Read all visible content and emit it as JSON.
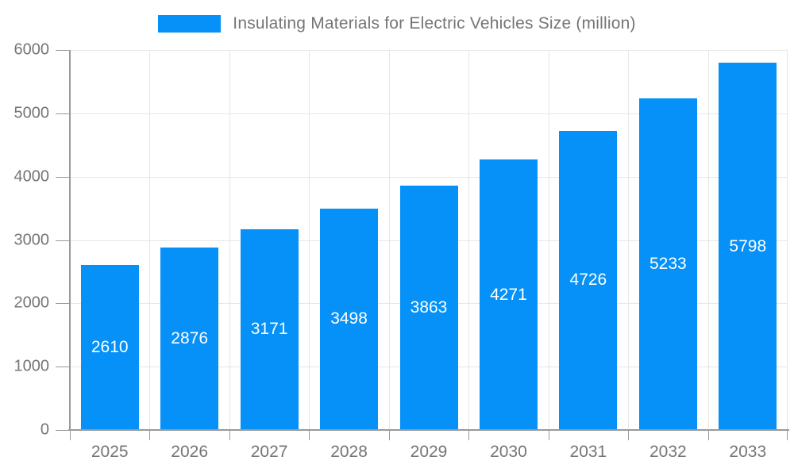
{
  "chart_data": {
    "type": "bar",
    "title": "Insulating Materials for Electric Vehicles Size (million)",
    "categories": [
      "2025",
      "2026",
      "2027",
      "2028",
      "2029",
      "2030",
      "2031",
      "2032",
      "2033"
    ],
    "values": [
      2610,
      2876,
      3171,
      3498,
      3863,
      4271,
      4726,
      5233,
      5798
    ],
    "series": [
      {
        "name": "Insulating Materials for Electric Vehicles Size (million)",
        "values": [
          2610,
          2876,
          3171,
          3498,
          3863,
          4271,
          4726,
          5233,
          5798
        ]
      }
    ],
    "xlabel": "",
    "ylabel": "",
    "ylim": [
      0,
      6000
    ],
    "yticks": [
      0,
      1000,
      2000,
      3000,
      4000,
      5000,
      6000
    ],
    "grid": true,
    "legend_position": "top",
    "bar_labels_inside": true
  },
  "style": {
    "bar_color": "#0591f8",
    "bar_label_color": "#ffffff",
    "axis_line_color": "#999999",
    "gridline_color": "#e6e6e6",
    "tick_label_color": "#757575",
    "legend_text_color": "#757575",
    "background_color": "#ffffff"
  }
}
